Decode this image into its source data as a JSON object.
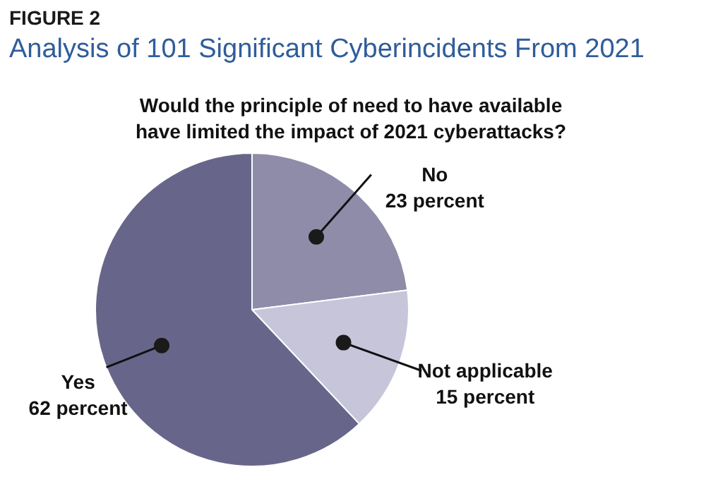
{
  "chart_data": {
    "type": "pie",
    "title": "Analysis of 101 Significant Cyberincidents From 2021",
    "subtitle": "Would the principle of need to have available\nhave limited the impact of 2021 cyberattacks?",
    "annotations": [
      "FIGURE 2"
    ],
    "categories": [
      "No",
      "Not applicable",
      "Yes"
    ],
    "values": [
      23,
      15,
      62
    ],
    "value_labels": [
      "23 percent",
      "15 percent",
      "62 percent"
    ],
    "colors": [
      "#8e8ca9",
      "#c6c5da",
      "#67668a"
    ],
    "legend": false
  }
}
